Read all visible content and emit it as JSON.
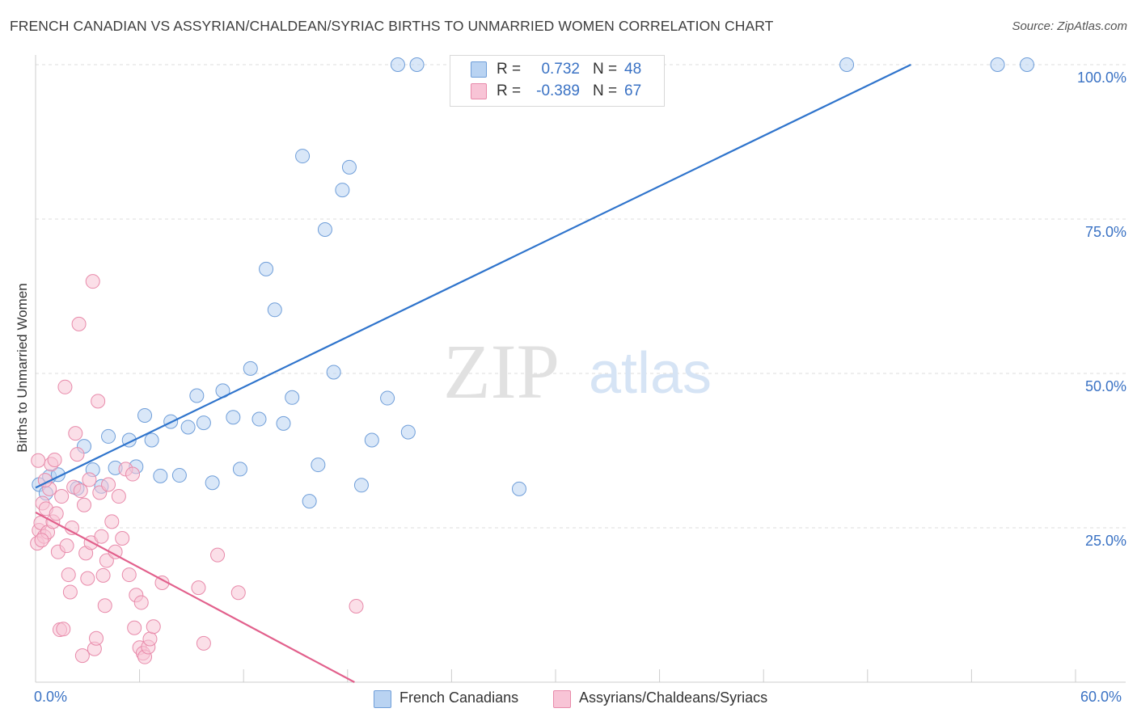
{
  "title": "FRENCH CANADIAN VS ASSYRIAN/CHALDEAN/SYRIAC BIRTHS TO UNMARRIED WOMEN CORRELATION CHART",
  "source": "Source: ZipAtlas.com",
  "watermark": {
    "part1": "ZIP",
    "part2": "atlas"
  },
  "legend_top": [
    {
      "r_label": "R =",
      "r_value": "0.732",
      "n_label": "N =",
      "n_value": "48",
      "color": "#b9d3f2"
    },
    {
      "r_label": "R =",
      "r_value": "-0.389",
      "n_label": "N =",
      "n_value": "67",
      "color": "#f8c4d6"
    }
  ],
  "colors": {
    "blue_fill": "#b9d3f2",
    "blue_stroke": "#6f9ed9",
    "blue_line": "#2f74cc",
    "pink_fill": "#f8c4d6",
    "pink_stroke": "#e88aaa",
    "pink_line": "#e2608c",
    "tick_text": "#3a72c4",
    "grid": "#dddddd"
  },
  "chart_data": {
    "type": "scatter",
    "title": "FRENCH CANADIAN VS ASSYRIAN/CHALDEAN/SYRIAC BIRTHS TO UNMARRIED WOMEN CORRELATION CHART",
    "xlabel": "",
    "ylabel": "Births to Unmarried Women",
    "xlim": [
      0,
      60
    ],
    "ylim": [
      0,
      100
    ],
    "x_tick_labels": [
      "0.0%",
      "60.0%"
    ],
    "y_tick_labels": [
      "100.0%",
      "75.0%",
      "50.0%",
      "25.0%"
    ],
    "y_ticks": [
      100,
      75,
      50,
      25
    ],
    "grid": true,
    "legend_position": "bottom",
    "series": [
      {
        "name": "French Canadians",
        "trend": [
          [
            0,
            31.5
          ],
          [
            50.5,
            100
          ]
        ],
        "points": [
          [
            0.2,
            32.0
          ],
          [
            0.6,
            30.6
          ],
          [
            0.8,
            33.3
          ],
          [
            1.3,
            33.6
          ],
          [
            2.4,
            31.4
          ],
          [
            2.8,
            38.2
          ],
          [
            3.3,
            34.4
          ],
          [
            3.8,
            31.7
          ],
          [
            4.2,
            39.8
          ],
          [
            4.6,
            34.7
          ],
          [
            5.4,
            39.2
          ],
          [
            5.8,
            34.9
          ],
          [
            6.3,
            43.2
          ],
          [
            6.7,
            39.2
          ],
          [
            7.2,
            33.4
          ],
          [
            7.8,
            42.2
          ],
          [
            8.3,
            33.5
          ],
          [
            8.8,
            41.3
          ],
          [
            9.3,
            46.4
          ],
          [
            9.7,
            42.0
          ],
          [
            10.2,
            32.3
          ],
          [
            10.8,
            47.2
          ],
          [
            11.4,
            42.9
          ],
          [
            11.8,
            34.5
          ],
          [
            12.4,
            50.8
          ],
          [
            12.9,
            42.6
          ],
          [
            13.3,
            66.9
          ],
          [
            13.8,
            60.3
          ],
          [
            14.3,
            41.9
          ],
          [
            14.8,
            46.1
          ],
          [
            15.4,
            85.2
          ],
          [
            15.8,
            29.3
          ],
          [
            16.3,
            35.2
          ],
          [
            16.7,
            73.3
          ],
          [
            17.2,
            50.2
          ],
          [
            17.7,
            79.7
          ],
          [
            18.1,
            83.4
          ],
          [
            18.8,
            31.9
          ],
          [
            19.4,
            39.2
          ],
          [
            20.3,
            46.0
          ],
          [
            20.9,
            100.0
          ],
          [
            21.5,
            40.5
          ],
          [
            22.0,
            100.0
          ],
          [
            27.9,
            31.3
          ],
          [
            32.0,
            100.0
          ],
          [
            46.8,
            100.0
          ],
          [
            55.5,
            100.0
          ],
          [
            57.2,
            100.0
          ]
        ]
      },
      {
        "name": "Assyrians/Chaldeans/Syriacs",
        "trend": [
          [
            0,
            27.5
          ],
          [
            18.4,
            0
          ]
        ],
        "points": [
          [
            0.1,
            22.5
          ],
          [
            0.2,
            24.6
          ],
          [
            0.3,
            25.8
          ],
          [
            0.4,
            29.0
          ],
          [
            0.5,
            23.6
          ],
          [
            0.6,
            28.1
          ],
          [
            0.7,
            24.3
          ],
          [
            0.8,
            31.3
          ],
          [
            0.9,
            35.3
          ],
          [
            1.0,
            26.0
          ],
          [
            1.1,
            36.0
          ],
          [
            1.2,
            27.3
          ],
          [
            1.3,
            21.1
          ],
          [
            1.4,
            8.5
          ],
          [
            1.5,
            30.1
          ],
          [
            1.6,
            8.6
          ],
          [
            1.7,
            47.8
          ],
          [
            1.8,
            22.1
          ],
          [
            1.9,
            17.4
          ],
          [
            2.0,
            14.6
          ],
          [
            2.1,
            25.0
          ],
          [
            2.2,
            31.6
          ],
          [
            2.3,
            40.3
          ],
          [
            2.4,
            36.9
          ],
          [
            2.5,
            58.0
          ],
          [
            2.6,
            31.0
          ],
          [
            2.7,
            4.3
          ],
          [
            2.8,
            28.7
          ],
          [
            2.9,
            20.9
          ],
          [
            3.0,
            16.8
          ],
          [
            3.1,
            32.8
          ],
          [
            3.2,
            22.6
          ],
          [
            3.3,
            64.9
          ],
          [
            3.4,
            5.4
          ],
          [
            3.5,
            7.1
          ],
          [
            3.6,
            45.5
          ],
          [
            3.7,
            30.7
          ],
          [
            3.8,
            23.6
          ],
          [
            3.9,
            17.3
          ],
          [
            4.0,
            12.4
          ],
          [
            4.1,
            19.7
          ],
          [
            4.2,
            32.0
          ],
          [
            4.4,
            26.0
          ],
          [
            4.6,
            21.1
          ],
          [
            4.8,
            30.1
          ],
          [
            5.0,
            23.3
          ],
          [
            5.2,
            34.5
          ],
          [
            5.4,
            17.4
          ],
          [
            5.6,
            33.7
          ],
          [
            5.7,
            8.8
          ],
          [
            5.8,
            14.1
          ],
          [
            6.0,
            5.6
          ],
          [
            6.1,
            12.9
          ],
          [
            6.2,
            4.7
          ],
          [
            6.3,
            4.1
          ],
          [
            6.5,
            5.7
          ],
          [
            6.6,
            7.0
          ],
          [
            6.8,
            9.0
          ],
          [
            7.3,
            16.1
          ],
          [
            9.4,
            15.3
          ],
          [
            9.7,
            6.3
          ],
          [
            10.5,
            20.6
          ],
          [
            11.7,
            14.5
          ],
          [
            18.5,
            12.3
          ],
          [
            0.15,
            35.9
          ],
          [
            0.35,
            23.0
          ],
          [
            0.55,
            32.7
          ]
        ]
      }
    ]
  },
  "bottom_legend": [
    {
      "label": "French Canadians",
      "color": "#b9d3f2"
    },
    {
      "label": "Assyrians/Chaldeans/Syriacs",
      "color": "#f8c4d6"
    }
  ]
}
